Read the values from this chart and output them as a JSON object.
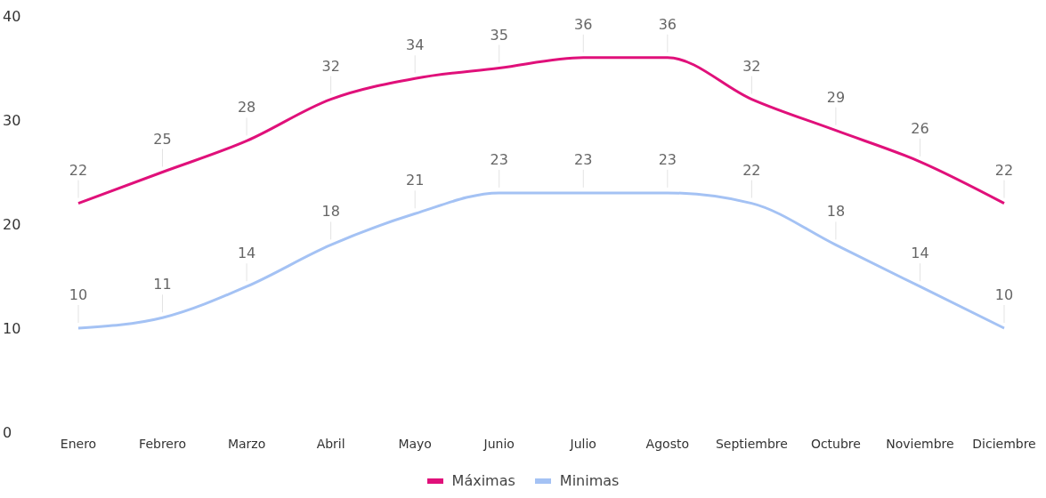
{
  "chart_data": {
    "type": "line",
    "categories": [
      "Enero",
      "Febrero",
      "Marzo",
      "Abril",
      "Mayo",
      "Junio",
      "Julio",
      "Agosto",
      "Septiembre",
      "Octubre",
      "Noviembre",
      "Diciembre"
    ],
    "series": [
      {
        "name": "Máximas",
        "color": "#e0107a",
        "values": [
          22,
          25,
          28,
          32,
          34,
          35,
          36,
          36,
          32,
          29,
          26,
          22
        ]
      },
      {
        "name": "Minimas",
        "color": "#a4c2f4",
        "values": [
          10,
          11,
          14,
          18,
          21,
          23,
          23,
          23,
          22,
          18,
          14,
          10
        ]
      }
    ],
    "ylim": [
      0,
      40
    ],
    "yticks": [
      0,
      10,
      20,
      30,
      40
    ],
    "grid": false,
    "legend": "bottom",
    "marker": "none",
    "line_style": "solid",
    "data_labels": true
  }
}
